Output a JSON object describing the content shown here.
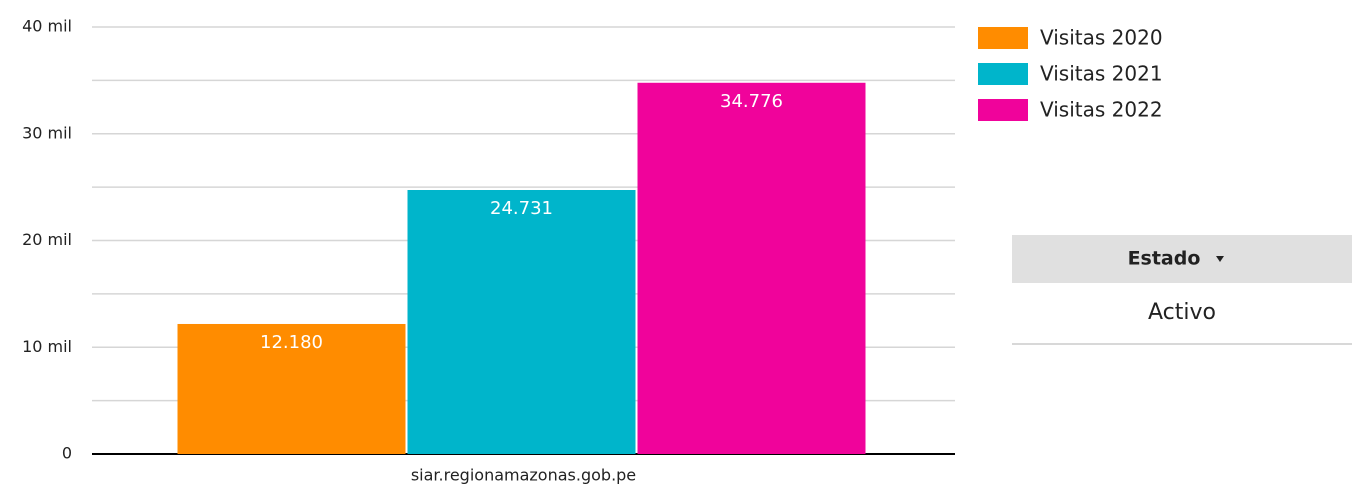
{
  "chart_data": {
    "type": "bar",
    "categories": [
      "siar.regionamazonas.gob.pe"
    ],
    "series": [
      {
        "name": "Visitas 2020",
        "color": "#ff8c00",
        "values": [
          12180
        ],
        "value_labels": [
          "12.180"
        ]
      },
      {
        "name": "Visitas 2021",
        "color": "#00b5cb",
        "values": [
          24731
        ],
        "value_labels": [
          "24.731"
        ]
      },
      {
        "name": "Visitas 2022",
        "color": "#f0039b",
        "values": [
          34776
        ],
        "value_labels": [
          "34.776"
        ]
      }
    ],
    "ylim": [
      0,
      40000
    ],
    "yticks": [
      0,
      {
        "value": 10000,
        "label": "10 mil"
      },
      {
        "value": 20000,
        "label": "20 mil"
      },
      {
        "value": 30000,
        "label": "30 mil"
      },
      {
        "value": 40000,
        "label": "40 mil"
      }
    ],
    "minor_yticks": [
      5000,
      15000,
      25000,
      35000
    ],
    "grid": true,
    "legend": "right"
  },
  "filter": {
    "label": "Estado",
    "options": [
      "Activo"
    ]
  }
}
